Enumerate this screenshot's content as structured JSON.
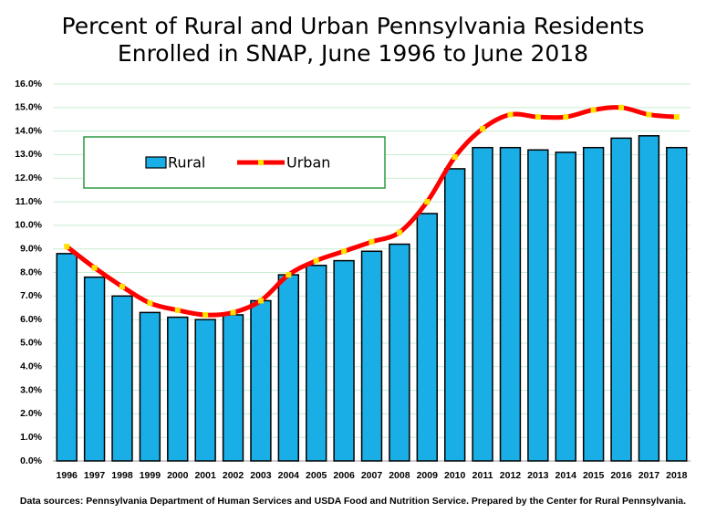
{
  "chart_data": {
    "type": "bar_line",
    "title": [
      "Percent of Rural and Urban Pennsylvania Residents",
      "Enrolled in SNAP, June 1996 to June 2018"
    ],
    "source": "Data sources: Pennsylvania Department of Human Services and USDA Food and Nutrition Service. Prepared by the Center for Rural Pennsylvania.",
    "categories": [
      "1996",
      "1997",
      "1998",
      "1999",
      "2000",
      "2001",
      "2002",
      "2003",
      "2004",
      "2005",
      "2006",
      "2007",
      "2008",
      "2009",
      "2010",
      "2011",
      "2012",
      "2013",
      "2014",
      "2015",
      "2016",
      "2017",
      "2018"
    ],
    "series": [
      {
        "name": "Rural",
        "type": "bar",
        "color": "#1aaee6",
        "values": [
          8.8,
          7.8,
          7.0,
          6.3,
          6.1,
          6.0,
          6.2,
          6.8,
          7.9,
          8.3,
          8.5,
          8.9,
          9.2,
          10.5,
          12.4,
          13.3,
          13.3,
          13.2,
          13.1,
          13.3,
          13.7,
          13.8,
          13.3
        ]
      },
      {
        "name": "Urban",
        "type": "line",
        "color": "#ff0000",
        "marker_color": "#ffe000",
        "values": [
          9.1,
          8.2,
          7.4,
          6.7,
          6.4,
          6.2,
          6.3,
          6.8,
          7.9,
          8.5,
          8.9,
          9.3,
          9.7,
          11.0,
          12.9,
          14.1,
          14.7,
          14.6,
          14.6,
          14.9,
          15.0,
          14.7,
          14.6
        ]
      }
    ],
    "ylim": [
      0,
      16
    ],
    "yticks": [
      {
        "value": 0,
        "label": "0.0%"
      },
      {
        "value": 1,
        "label": "1.0%"
      },
      {
        "value": 2,
        "label": "2.0%"
      },
      {
        "value": 3,
        "label": "3.0%"
      },
      {
        "value": 4,
        "label": "4.0%"
      },
      {
        "value": 5,
        "label": "5.0%"
      },
      {
        "value": 6,
        "label": "6.0%"
      },
      {
        "value": 7,
        "label": "7.0%"
      },
      {
        "value": 8,
        "label": "8.0%"
      },
      {
        "value": 9,
        "label": "9.0%"
      },
      {
        "value": 10,
        "label": "10.0%"
      },
      {
        "value": 11,
        "label": "11.0%"
      },
      {
        "value": 12,
        "label": "12.0%"
      },
      {
        "value": 13,
        "label": "13.0%"
      },
      {
        "value": 14,
        "label": "14.0%"
      },
      {
        "value": 15,
        "label": "15.0%"
      },
      {
        "value": 16,
        "label": "16.0%"
      }
    ],
    "grid": true
  }
}
